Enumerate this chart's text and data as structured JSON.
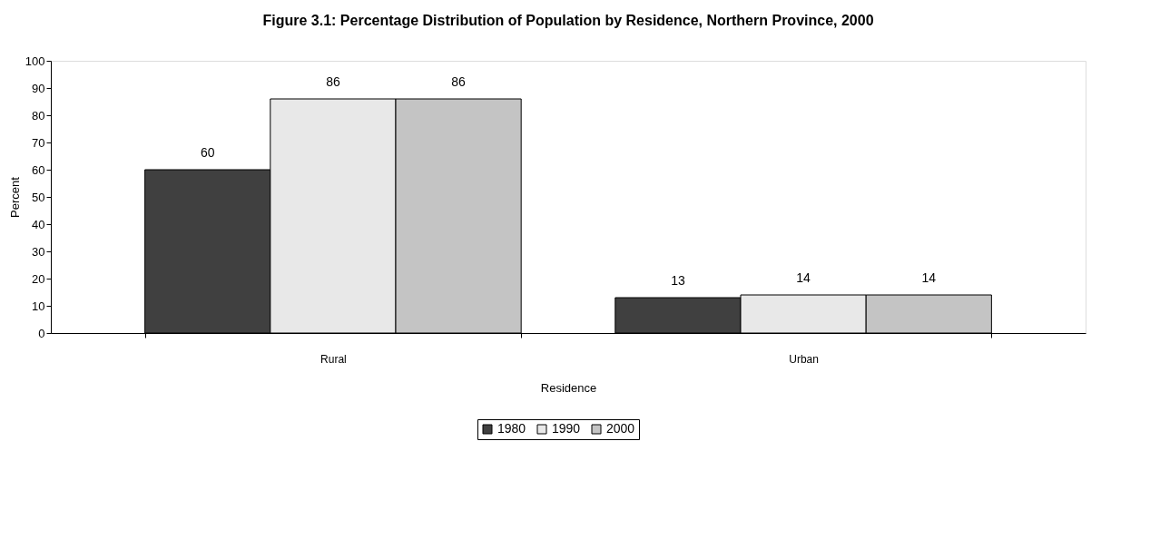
{
  "chart_data": {
    "type": "bar",
    "title": "Figure 3.1: Percentage Distribution of Population by Residence, Northern Province, 2000",
    "xlabel": "Residence",
    "ylabel": "Percent",
    "categories": [
      "Rural",
      "Urban"
    ],
    "series": [
      {
        "name": "1980",
        "color": "#404040",
        "values": [
          60,
          13
        ]
      },
      {
        "name": "1990",
        "color": "#e8e8e8",
        "values": [
          86,
          14
        ]
      },
      {
        "name": "2000",
        "color": "#c4c4c4",
        "values": [
          86,
          14
        ]
      }
    ],
    "ylim": [
      0,
      100
    ],
    "yticks": [
      0,
      10,
      20,
      30,
      40,
      50,
      60,
      70,
      80,
      90,
      100
    ],
    "data_labels": true,
    "legend": "bottom",
    "grid": false
  }
}
